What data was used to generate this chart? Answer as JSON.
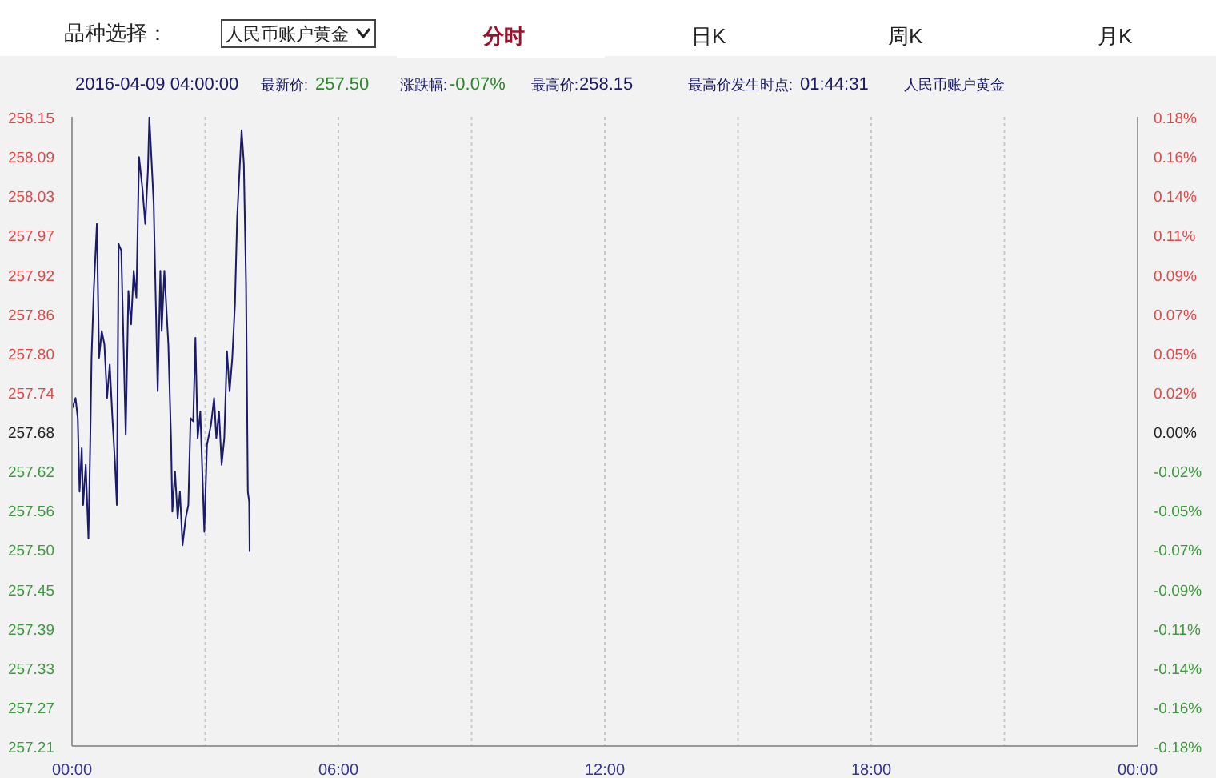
{
  "chart_data": {
    "type": "line",
    "annotations": [
      "品种选择：",
      "人民币账户黄金",
      "分时",
      "日K",
      "周K",
      "月K",
      "2016-04-09 04:00:00",
      "最新价:",
      "257.50",
      "涨跌幅:",
      "-0.07%",
      "最高价:",
      "258.15",
      "最高价发生时点:",
      "01:44:31",
      "人民币账户黄金"
    ],
    "x": [
      0.01,
      0.08,
      0.13,
      0.17,
      0.22,
      0.25,
      0.31,
      0.37,
      0.41,
      0.44,
      0.49,
      0.56,
      0.61,
      0.67,
      0.73,
      0.79,
      0.85,
      0.91,
      0.97,
      1.01,
      1.05,
      1.11,
      1.21,
      1.27,
      1.33,
      1.39,
      1.45,
      1.51,
      1.59,
      1.65,
      1.71,
      1.742,
      1.84,
      1.93,
      1.99,
      2.02,
      2.08,
      2.17,
      2.23,
      2.26,
      2.32,
      2.38,
      2.43,
      2.49,
      2.56,
      2.62,
      2.67,
      2.73,
      2.78,
      2.83,
      2.89,
      2.98,
      3.04,
      3.13,
      3.2,
      3.25,
      3.31,
      3.37,
      3.43,
      3.49,
      3.55,
      3.61,
      3.67,
      3.72,
      3.82,
      3.87,
      3.92,
      3.96,
      3.99,
      4.0
    ],
    "series": [
      {
        "color": "#1a1a6e",
        "values": [
          257.715,
          257.73,
          257.7,
          257.59,
          257.655,
          257.57,
          257.63,
          257.52,
          257.66,
          257.79,
          257.89,
          257.99,
          257.79,
          257.83,
          257.81,
          257.73,
          257.78,
          257.7,
          257.63,
          257.57,
          257.96,
          257.95,
          257.675,
          257.89,
          257.84,
          257.92,
          257.88,
          258.09,
          258.04,
          257.99,
          258.07,
          258.15,
          258.02,
          257.74,
          257.92,
          257.83,
          257.92,
          257.81,
          257.67,
          257.56,
          257.62,
          257.55,
          257.59,
          257.51,
          257.55,
          257.57,
          257.7,
          257.695,
          257.82,
          257.67,
          257.71,
          257.53,
          257.66,
          257.69,
          257.73,
          257.67,
          257.71,
          257.63,
          257.67,
          257.8,
          257.74,
          257.79,
          257.87,
          258.0,
          258.13,
          258.08,
          257.9,
          257.59,
          257.575,
          257.5
        ]
      }
    ],
    "xlim": [
      0,
      24
    ],
    "xticks": [
      {
        "value": 0,
        "label": "00:00"
      },
      {
        "value": 3,
        "label": null
      },
      {
        "value": 6,
        "label": "06:00"
      },
      {
        "value": 9,
        "label": null
      },
      {
        "value": 12,
        "label": "12:00"
      },
      {
        "value": 15,
        "label": null
      },
      {
        "value": 18,
        "label": "18:00"
      },
      {
        "value": 21,
        "label": null
      },
      {
        "value": 24,
        "label": "00:00"
      }
    ],
    "ylim": [
      257.21,
      258.15
    ],
    "yticks": [
      {
        "value": 257.21,
        "label": "257.21"
      },
      {
        "value": 257.2688,
        "label": "257.27"
      },
      {
        "value": 257.3275,
        "label": "257.33"
      },
      {
        "value": 257.3863,
        "label": "257.39"
      },
      {
        "value": 257.445,
        "label": "257.45"
      },
      {
        "value": 257.5038,
        "label": "257.50"
      },
      {
        "value": 257.5625,
        "label": "257.56"
      },
      {
        "value": 257.6213,
        "label": "257.62"
      },
      {
        "value": 257.68,
        "label": "257.68"
      },
      {
        "value": 257.7388,
        "label": "257.74"
      },
      {
        "value": 257.7975,
        "label": "257.80"
      },
      {
        "value": 257.8563,
        "label": "257.86"
      },
      {
        "value": 257.915,
        "label": "257.92"
      },
      {
        "value": 257.9738,
        "label": "257.97"
      },
      {
        "value": 258.0325,
        "label": "258.03"
      },
      {
        "value": 258.0913,
        "label": "258.09"
      },
      {
        "value": 258.15,
        "label": "258.15"
      }
    ],
    "y2lim": [
      -0.1824,
      0.1824
    ],
    "y2ticks": [
      {
        "value": -0.1824,
        "label": "-0.18%"
      },
      {
        "value": -0.1596,
        "label": "-0.16%"
      },
      {
        "value": -0.1368,
        "label": "-0.14%"
      },
      {
        "value": -0.114,
        "label": "-0.11%"
      },
      {
        "value": -0.0912,
        "label": "-0.09%"
      },
      {
        "value": -0.0684,
        "label": "-0.07%"
      },
      {
        "value": -0.0456,
        "label": "-0.05%"
      },
      {
        "value": -0.0228,
        "label": "-0.02%"
      },
      {
        "value": 0,
        "label": "0.00%"
      },
      {
        "value": 0.0228,
        "label": "0.02%"
      },
      {
        "value": 0.0456,
        "label": "0.05%"
      },
      {
        "value": 0.0684,
        "label": "0.07%"
      },
      {
        "value": 0.0912,
        "label": "0.09%"
      },
      {
        "value": 0.114,
        "label": "0.11%"
      },
      {
        "value": 0.1368,
        "label": "0.14%"
      },
      {
        "value": 0.1596,
        "label": "0.16%"
      },
      {
        "value": 0.1824,
        "label": "0.18%"
      }
    ],
    "grid": true,
    "marker": "none",
    "line_style": "solid"
  }
}
